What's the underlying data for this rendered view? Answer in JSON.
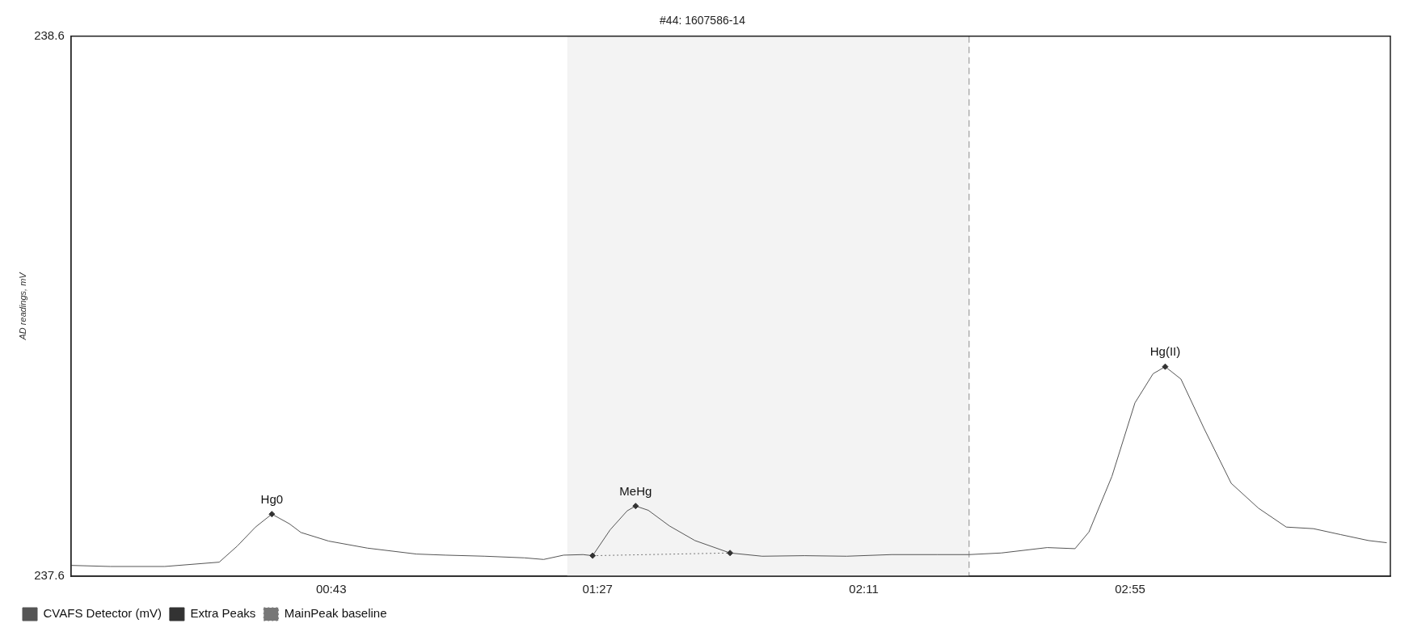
{
  "chart_data": {
    "type": "line",
    "title": "#44: 1607586-14",
    "ylabel": "AD readings, mV",
    "xlim": [
      0,
      218
    ],
    "ylim": [
      237.6,
      238.6
    ],
    "xticks": [
      {
        "value": 43,
        "label": "00:43"
      },
      {
        "value": 87,
        "label": "01:27"
      },
      {
        "value": 131,
        "label": "02:11"
      },
      {
        "value": 175,
        "label": "02:55"
      }
    ],
    "yticks": [
      237.6,
      238.6
    ],
    "grid": false,
    "legend": "bottom left",
    "series": [
      {
        "name": "CVAFS Detector (mV)",
        "type": "line",
        "color": "#555555",
        "marker": "none",
        "line_style": "solid",
        "x": [
          0,
          6.5,
          15.5,
          24.5,
          27.5,
          30.5,
          33.2,
          36.1,
          38,
          42.6,
          49,
          57.1,
          61.9,
          68.4,
          74.9,
          78.1,
          81.4,
          84.6,
          86.2,
          89.1,
          91.9,
          93.3,
          95.4,
          98.9,
          103.1,
          108.9,
          114.2,
          121.2,
          128.2,
          135.6,
          143.1,
          148.4,
          153.7,
          161.3,
          165.9,
          168.2,
          172,
          175.8,
          178.8,
          180.8,
          183.4,
          187.2,
          191.7,
          196.2,
          200.8,
          205.3,
          209.8,
          214.4,
          217.4
        ],
        "values": [
          237.62,
          237.618,
          237.618,
          237.626,
          237.656,
          237.691,
          237.715,
          237.697,
          237.681,
          237.665,
          237.652,
          237.641,
          237.639,
          237.637,
          237.634,
          237.631,
          237.639,
          237.64,
          237.638,
          237.686,
          237.721,
          237.73,
          237.722,
          237.693,
          237.666,
          237.643,
          237.637,
          237.638,
          237.637,
          237.64,
          237.64,
          237.64,
          237.643,
          237.653,
          237.651,
          237.682,
          237.785,
          237.921,
          237.975,
          237.988,
          237.965,
          237.874,
          237.772,
          237.726,
          237.691,
          237.688,
          237.677,
          237.666,
          237.662
        ]
      },
      {
        "name": "Extra Peaks",
        "type": "scatter",
        "color": "#333333",
        "marker": "diamond",
        "x": [
          33.2,
          86.2,
          93.3,
          108.9,
          180.8
        ],
        "values": [
          237.715,
          237.638,
          237.73,
          237.643,
          237.988
        ]
      },
      {
        "name": "MainPeak baseline",
        "type": "line",
        "color": "#777777",
        "marker": "none",
        "line_style": "dotted",
        "x": [
          86.2,
          108.9
        ],
        "values": [
          237.638,
          237.643
        ]
      }
    ],
    "bands": [
      {
        "axis": "x",
        "from": 82,
        "to": 148.4,
        "color": "#f3f3f3"
      }
    ],
    "ref_lines": [
      {
        "axis": "x",
        "value": 148.4,
        "color": "#8a8a8a",
        "line_style": "dashed"
      }
    ],
    "annotations": [
      {
        "text": "Hg0",
        "x": 33.2,
        "y": 237.715
      },
      {
        "text": "MeHg",
        "x": 93.3,
        "y": 237.73
      },
      {
        "text": "Hg(II)",
        "x": 180.8,
        "y": 237.988
      }
    ]
  }
}
